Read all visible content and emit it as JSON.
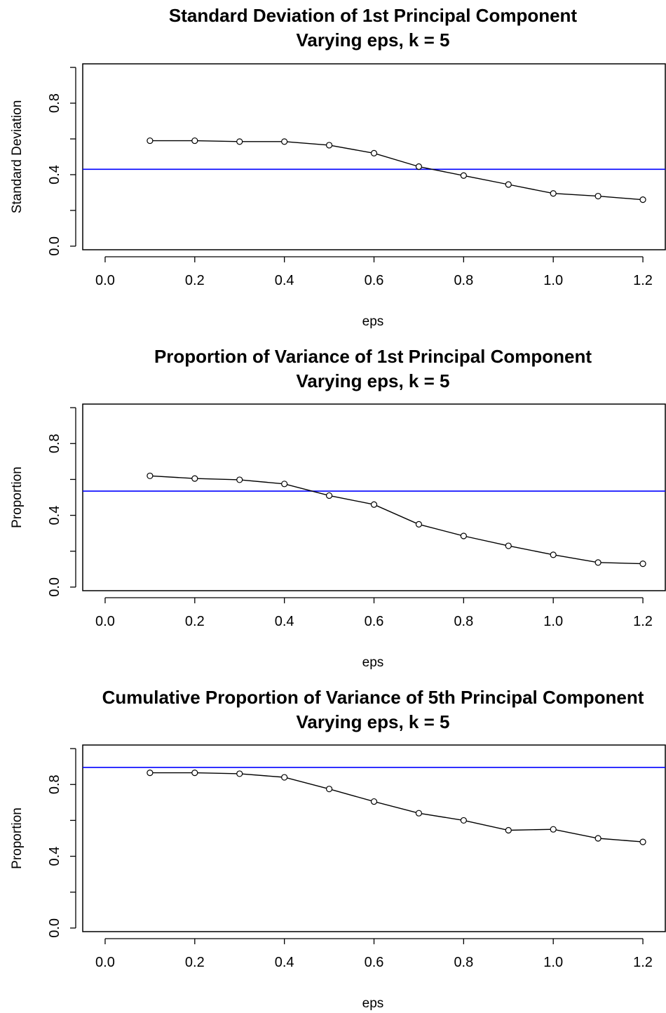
{
  "chart_data": [
    {
      "type": "line",
      "title": "Standard Deviation of 1st Principal Component",
      "subtitle": "Varying eps, k = 5",
      "xlabel": "eps",
      "ylabel": "Standard Deviation",
      "xlim": [
        -0.05,
        1.25
      ],
      "ylim": [
        -0.02,
        1.02
      ],
      "x_ticks": [
        "0.0",
        "0.2",
        "0.4",
        "0.6",
        "0.8",
        "1.0",
        "1.2"
      ],
      "y_ticks": [
        "0.0",
        "0.4",
        "0.8"
      ],
      "x": [
        0.1,
        0.2,
        0.3,
        0.4,
        0.5,
        0.6,
        0.7,
        0.8,
        0.9,
        1.0,
        1.1,
        1.2
      ],
      "series": [
        {
          "values": [
            0.59,
            0.59,
            0.585,
            0.585,
            0.565,
            0.52,
            0.445,
            0.395,
            0.345,
            0.295,
            0.28,
            0.26
          ],
          "color": "#000000",
          "markers": "circle"
        }
      ],
      "reference_line": {
        "y": 0.43,
        "color": "#0000ff"
      },
      "grid": false
    },
    {
      "type": "line",
      "title": "Proportion of Variance of 1st Principal Component",
      "subtitle": "Varying eps, k = 5",
      "xlabel": "eps",
      "ylabel": "Proportion",
      "xlim": [
        -0.05,
        1.25
      ],
      "ylim": [
        -0.02,
        1.02
      ],
      "x_ticks": [
        "0.0",
        "0.2",
        "0.4",
        "0.6",
        "0.8",
        "1.0",
        "1.2"
      ],
      "y_ticks": [
        "0.0",
        "0.4",
        "0.8"
      ],
      "x": [
        0.1,
        0.2,
        0.3,
        0.4,
        0.5,
        0.6,
        0.7,
        0.8,
        0.9,
        1.0,
        1.1,
        1.2
      ],
      "series": [
        {
          "values": [
            0.62,
            0.605,
            0.598,
            0.575,
            0.51,
            0.46,
            0.35,
            0.285,
            0.23,
            0.18,
            0.137,
            0.13
          ],
          "color": "#000000",
          "markers": "circle"
        }
      ],
      "reference_line": {
        "y": 0.535,
        "color": "#0000ff"
      },
      "grid": false
    },
    {
      "type": "line",
      "title": "Cumulative Proportion of Variance of 5th Principal Component",
      "subtitle": "Varying eps, k = 5",
      "xlabel": "eps",
      "ylabel": "Proportion",
      "xlim": [
        -0.05,
        1.25
      ],
      "ylim": [
        -0.02,
        1.02
      ],
      "x_ticks": [
        "0.0",
        "0.2",
        "0.4",
        "0.6",
        "0.8",
        "1.0",
        "1.2"
      ],
      "y_ticks": [
        "0.0",
        "0.4",
        "0.8"
      ],
      "x": [
        0.1,
        0.2,
        0.3,
        0.4,
        0.5,
        0.6,
        0.7,
        0.8,
        0.9,
        1.0,
        1.1,
        1.2
      ],
      "series": [
        {
          "values": [
            0.865,
            0.865,
            0.86,
            0.84,
            0.775,
            0.705,
            0.64,
            0.6,
            0.545,
            0.55,
            0.5,
            0.48
          ],
          "color": "#000000",
          "markers": "circle"
        }
      ],
      "reference_line": {
        "y": 0.895,
        "color": "#0000ff"
      },
      "grid": false
    }
  ]
}
